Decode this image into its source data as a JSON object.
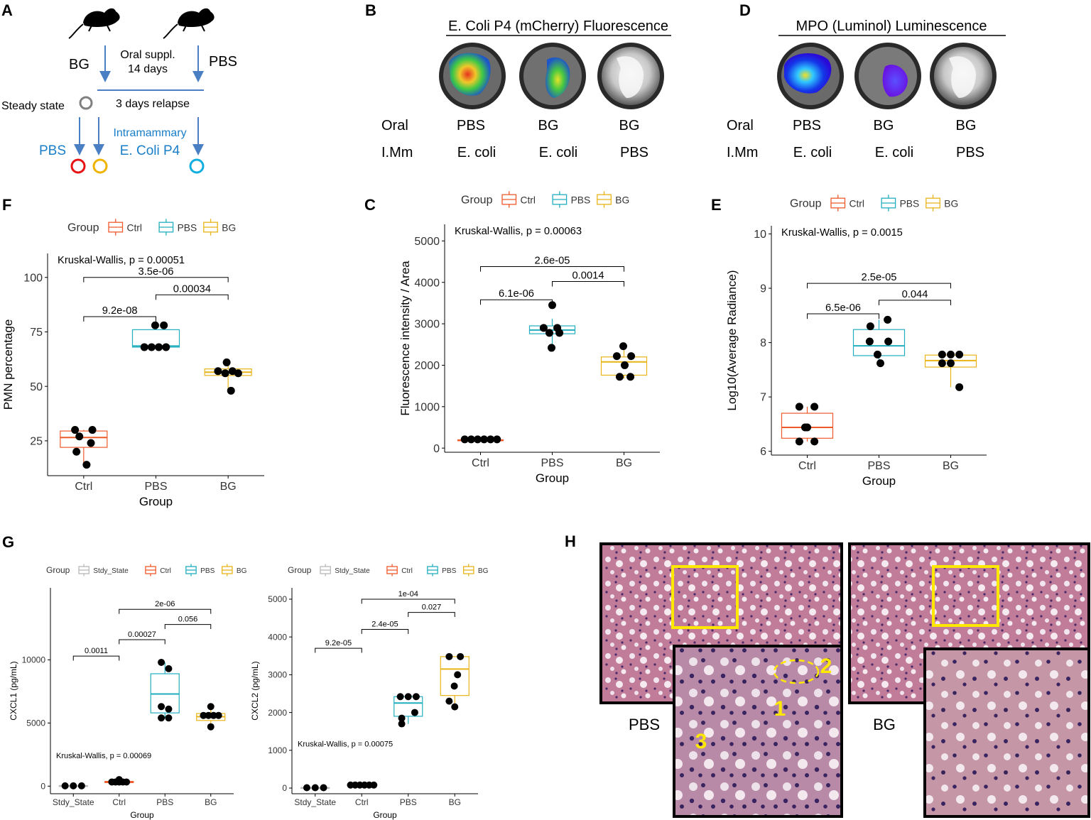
{
  "colors": {
    "Stdy_State": "#b8b8b8",
    "Ctrl": "#ef5a2a",
    "PBS": "#22aebf",
    "BG": "#e8b418",
    "arrow": "#4a7fc4",
    "label_blue": "#1a7ec8",
    "circle_red": "#e81414",
    "circle_yellow": "#f0b400",
    "circle_cyan": "#13aee0",
    "circle_grey": "#808080",
    "highlight": "#ffe800"
  },
  "panelA": {
    "letter": "A",
    "left_group": "BG",
    "right_group": "PBS",
    "oral_line1": "Oral suppl.",
    "oral_line2": "14 days",
    "steady_state": "Steady state",
    "relapse": "3 days relapse",
    "pbs_label": "PBS",
    "intramammary": "Intramammary",
    "ecoli_label": "E. Coli P4"
  },
  "panelB": {
    "letter": "B",
    "title": "E. Coli P4 (mCherry) Fluorescence",
    "row1_label": "Oral",
    "row2_label": "I.Mm",
    "oral": [
      "PBS",
      "BG",
      "BG"
    ],
    "imm": [
      "E. coli",
      "E. coli",
      "PBS"
    ]
  },
  "panelD": {
    "letter": "D",
    "title": "MPO (Luminol) Luminescence",
    "row1_label": "Oral",
    "row2_label": "I.Mm",
    "oral": [
      "PBS",
      "BG",
      "BG"
    ],
    "imm": [
      "E. coli",
      "E. coli",
      "PBS"
    ]
  },
  "panelH": {
    "letter": "H",
    "left_label": "PBS",
    "right_label": "BG",
    "marker1": "1",
    "marker2": "2",
    "marker3": "3"
  },
  "chart_data": [
    {
      "id": "F",
      "type": "boxplot",
      "letter": "F",
      "legend_title": "Group",
      "groups": [
        "Ctrl",
        "PBS",
        "BG"
      ],
      "legend_position": "top",
      "ylabel": "PMN percentage",
      "xlabel": "Group",
      "ylim": [
        9,
        111
      ],
      "yticks": [
        25,
        50,
        75,
        100
      ],
      "kw_label": "Kruskal-Wallis, p = 0.00051",
      "boxes": [
        {
          "group": "Ctrl",
          "q1": 22,
          "median": 26.5,
          "q3": 29.5,
          "wlo": 14,
          "whi": 30
        },
        {
          "group": "PBS",
          "q1": 68,
          "median": 68.5,
          "q3": 76,
          "wlo": 68,
          "whi": 78
        },
        {
          "group": "BG",
          "q1": 55,
          "median": 56.5,
          "q3": 58,
          "wlo": 48,
          "whi": 61
        }
      ],
      "points": [
        {
          "g": 0,
          "x": [
            -0.12,
            0.12,
            -0.06,
            0.1,
            -0.1,
            0.04
          ],
          "y": [
            30,
            30,
            27,
            24,
            20,
            14
          ]
        },
        {
          "g": 1,
          "x": [
            -0.16,
            -0.06,
            0.04,
            0.14,
            -0.01,
            0.11
          ],
          "y": [
            68,
            68,
            68,
            68,
            78,
            78
          ]
        },
        {
          "g": 2,
          "x": [
            -0.14,
            -0.04,
            0.06,
            0.14,
            -0.02,
            0.04
          ],
          "y": [
            57,
            56,
            57,
            56,
            61,
            48
          ]
        }
      ],
      "brackets": [
        {
          "a": 0,
          "b": 1,
          "y": 82,
          "label": "9.2e-08"
        },
        {
          "a": 1,
          "b": 2,
          "y": 92,
          "label": "0.00034"
        },
        {
          "a": 0,
          "b": 2,
          "y": 100,
          "label": "3.5e-06"
        }
      ]
    },
    {
      "id": "C",
      "type": "boxplot",
      "letter": "C",
      "legend_title": "Group",
      "groups": [
        "Ctrl",
        "PBS",
        "BG"
      ],
      "legend_position": "top",
      "ylabel": "Fluorescence intensity / Area",
      "xlabel": "Group",
      "ylim": [
        -100,
        5400
      ],
      "yticks": [
        0,
        1000,
        2000,
        3000,
        4000,
        5000
      ],
      "kw_label": "Kruskal-Wallis, p = 0.00063",
      "boxes": [
        {
          "group": "Ctrl",
          "q1": 180,
          "median": 185,
          "q3": 200,
          "wlo": 180,
          "whi": 210
        },
        {
          "group": "PBS",
          "q1": 2760,
          "median": 2850,
          "q3": 2950,
          "wlo": 2420,
          "whi": 3120
        },
        {
          "group": "BG",
          "q1": 1760,
          "median": 2080,
          "q3": 2200,
          "wlo": 1680,
          "whi": 2460
        }
      ],
      "points": [
        {
          "g": 0,
          "x": [
            -0.22,
            -0.13,
            -0.04,
            0.05,
            0.14,
            0.23
          ],
          "y": [
            210,
            210,
            210,
            210,
            210,
            210
          ]
        },
        {
          "g": 1,
          "x": [
            -0.12,
            0.07,
            -0.04,
            0.1,
            0,
            -0.01
          ],
          "y": [
            2900,
            2900,
            2780,
            2780,
            3450,
            2420
          ]
        },
        {
          "g": 2,
          "x": [
            -0.1,
            0.1,
            -0.06,
            0.09,
            0.01,
            -0.01
          ],
          "y": [
            2220,
            2220,
            1720,
            1720,
            2000,
            2460
          ]
        }
      ],
      "brackets": [
        {
          "a": 0,
          "b": 1,
          "y": 3580,
          "label": "6.1e-06"
        },
        {
          "a": 1,
          "b": 2,
          "y": 4020,
          "label": "0.0014"
        },
        {
          "a": 0,
          "b": 2,
          "y": 4380,
          "label": "2.6e-05"
        }
      ]
    },
    {
      "id": "E",
      "type": "boxplot",
      "letter": "E",
      "legend_title": "Group",
      "groups": [
        "Ctrl",
        "PBS",
        "BG"
      ],
      "legend_position": "top",
      "ylabel": "Log10(Average Radiance)",
      "xlabel": "Group",
      "ylim": [
        5.93,
        10.15
      ],
      "yticks": [
        6,
        7,
        8,
        9,
        10
      ],
      "kw_label": "Kruskal-Wallis, p = 0.0015",
      "boxes": [
        {
          "group": "Ctrl",
          "q1": 6.24,
          "median": 6.44,
          "q3": 6.7,
          "wlo": 6.18,
          "whi": 6.82
        },
        {
          "group": "PBS",
          "q1": 7.76,
          "median": 7.94,
          "q3": 8.24,
          "wlo": 7.62,
          "whi": 8.42
        },
        {
          "group": "BG",
          "q1": 7.55,
          "median": 7.67,
          "q3": 7.77,
          "wlo": 7.18,
          "whi": 7.78
        }
      ],
      "points": [
        {
          "g": 0,
          "x": [
            -0.11,
            0.1,
            -0.11,
            0.1,
            0,
            -0.03
          ],
          "y": [
            6.82,
            6.82,
            6.18,
            6.18,
            6.44,
            6.44
          ]
        },
        {
          "g": 1,
          "x": [
            -0.13,
            0.13,
            -0.02,
            0.12,
            -0.12,
            0.02
          ],
          "y": [
            8.02,
            8.02,
            7.78,
            8.42,
            8.3,
            7.62
          ]
        },
        {
          "g": 2,
          "x": [
            -0.12,
            0,
            0.12,
            -0.12,
            0,
            0.12
          ],
          "y": [
            7.78,
            7.78,
            7.78,
            7.62,
            7.62,
            7.18
          ]
        }
      ],
      "brackets": [
        {
          "a": 0,
          "b": 1,
          "y": 8.53,
          "label": "6.5e-06"
        },
        {
          "a": 1,
          "b": 2,
          "y": 8.78,
          "label": "0.044"
        },
        {
          "a": 0,
          "b": 2,
          "y": 9.09,
          "label": "2.5e-05"
        }
      ]
    },
    {
      "id": "G1",
      "type": "boxplot",
      "letter": "G",
      "legend_title": "Group",
      "groups": [
        "Stdy_State",
        "Ctrl",
        "PBS",
        "BG"
      ],
      "legend_position": "top",
      "ylabel": "CXCL1 (pg/mL)",
      "xlabel": "Group",
      "ylim": [
        -600,
        15700
      ],
      "yticks": [
        0,
        5000,
        10000
      ],
      "kw_label": "Kruskal-Wallis, p = 0.00069",
      "boxes": [
        {
          "group": "Stdy_State",
          "q1": 20,
          "median": 25,
          "q3": 30,
          "wlo": 20,
          "whi": 30
        },
        {
          "group": "Ctrl",
          "q1": 280,
          "median": 320,
          "q3": 380,
          "wlo": 250,
          "whi": 520
        },
        {
          "group": "PBS",
          "q1": 5800,
          "median": 7300,
          "q3": 8900,
          "wlo": 5400,
          "whi": 9800
        },
        {
          "group": "BG",
          "q1": 5200,
          "median": 5500,
          "q3": 5750,
          "wlo": 4700,
          "whi": 6300
        }
      ],
      "points": [
        {
          "g": 0,
          "x": [
            -0.18,
            0,
            0.18
          ],
          "y": [
            25,
            25,
            25
          ]
        },
        {
          "g": 1,
          "x": [
            -0.16,
            -0.08,
            0,
            0.08,
            0.16,
            0.0
          ],
          "y": [
            330,
            330,
            330,
            330,
            330,
            520
          ]
        },
        {
          "g": 2,
          "x": [
            -0.08,
            0.08,
            -0.08,
            0.08,
            -0.08,
            0.08
          ],
          "y": [
            9800,
            9300,
            6300,
            6100,
            5400,
            5400
          ]
        },
        {
          "g": 3,
          "x": [
            -0.16,
            -0.05,
            0.06,
            0.17,
            0.0,
            0.0
          ],
          "y": [
            5600,
            5600,
            5600,
            5600,
            6300,
            4700
          ]
        }
      ],
      "brackets": [
        {
          "a": 0,
          "b": 1,
          "y": 10300,
          "label": "0.0011"
        },
        {
          "a": 1,
          "b": 2,
          "y": 11600,
          "label": "0.00027"
        },
        {
          "a": 2,
          "b": 3,
          "y": 12800,
          "label": "0.056"
        },
        {
          "a": 1,
          "b": 3,
          "y": 14000,
          "label": "2e-06"
        }
      ]
    },
    {
      "id": "G2",
      "type": "boxplot",
      "letter": "",
      "legend_title": "Group",
      "groups": [
        "Stdy_State",
        "Ctrl",
        "PBS",
        "BG"
      ],
      "legend_position": "top",
      "ylabel": "CXCL2 (pg/mL)",
      "xlabel": "Group",
      "ylim": [
        -150,
        5300
      ],
      "yticks": [
        0,
        1000,
        2000,
        3000,
        4000,
        5000
      ],
      "kw_label": "Kruskal-Wallis, p = 0.00075",
      "boxes": [
        {
          "group": "Stdy_State",
          "q1": 5,
          "median": 8,
          "q3": 10,
          "wlo": 5,
          "whi": 10
        },
        {
          "group": "Ctrl",
          "q1": 60,
          "median": 70,
          "q3": 80,
          "wlo": 60,
          "whi": 80
        },
        {
          "group": "PBS",
          "q1": 1900,
          "median": 2250,
          "q3": 2420,
          "wlo": 1700,
          "whi": 2430
        },
        {
          "group": "BG",
          "q1": 2450,
          "median": 3150,
          "q3": 3480,
          "wlo": 2150,
          "whi": 3480
        }
      ],
      "points": [
        {
          "g": 0,
          "x": [
            -0.18,
            0,
            0.18
          ],
          "y": [
            10,
            10,
            10
          ]
        },
        {
          "g": 1,
          "x": [
            -0.24,
            -0.14,
            -0.04,
            0.06,
            0.16,
            0.26
          ],
          "y": [
            80,
            80,
            80,
            80,
            80,
            80
          ]
        },
        {
          "g": 2,
          "x": [
            -0.17,
            0,
            0.17,
            -0.14,
            0.14,
            -0.14
          ],
          "y": [
            2420,
            2420,
            2420,
            1850,
            2000,
            1700
          ]
        },
        {
          "g": 3,
          "x": [
            -0.12,
            0.12,
            0.06,
            -0.01,
            -0.12,
            0.0
          ],
          "y": [
            3480,
            3480,
            3000,
            2700,
            2300,
            2150
          ]
        }
      ],
      "brackets": [
        {
          "a": 0,
          "b": 1,
          "y": 3700,
          "label": "9.2e-05"
        },
        {
          "a": 1,
          "b": 2,
          "y": 4200,
          "label": "2.4e-05"
        },
        {
          "a": 2,
          "b": 3,
          "y": 4650,
          "label": "0.027"
        },
        {
          "a": 1,
          "b": 3,
          "y": 5000,
          "label": "1e-04"
        }
      ]
    }
  ]
}
